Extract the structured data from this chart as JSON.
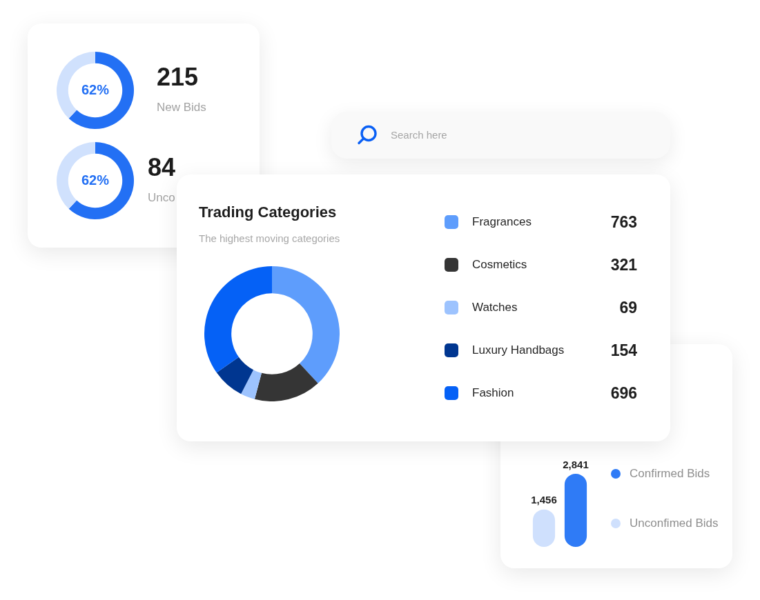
{
  "chart_data": [
    {
      "type": "donut",
      "categories": [
        null,
        null
      ],
      "values": [
        62,
        38
      ],
      "colors": [
        "#2370f4",
        "#d0e1fd"
      ],
      "value_labels": [
        "62%",
        null
      ],
      "annotations": [
        "215",
        "New Bids"
      ]
    },
    {
      "type": "donut",
      "categories": [
        null,
        null
      ],
      "values": [
        62,
        38
      ],
      "colors": [
        "#2370f4",
        "#d0e1fd"
      ],
      "value_labels": [
        "62%",
        null
      ],
      "annotations": [
        "84",
        "Unco"
      ]
    },
    {
      "type": "other",
      "annotations": [
        "Search here"
      ]
    },
    {
      "type": "donut",
      "title": "Trading Categories",
      "subtitle": "The highest moving categories",
      "categories": [
        "Fragrances",
        "Cosmetics",
        "Watches",
        "Luxury Handbags",
        "Fashion"
      ],
      "values": [
        763,
        321,
        69,
        154,
        696
      ],
      "colors": [
        "#5e9dfc",
        "#353535",
        "#9dc3fe",
        "#003690",
        "#0561f6"
      ],
      "data_labels": true,
      "legend": "right"
    },
    {
      "type": "bar",
      "categories": [
        null,
        null
      ],
      "series": [
        {
          "name": "Confirmed Bids",
          "color": "#2f7bf6",
          "values": [
            null,
            2841
          ],
          "value_labels": [
            null,
            "2,841"
          ]
        },
        {
          "name": "Unconfimed Bids",
          "color": "#cfe0fd",
          "values": [
            1456,
            null
          ],
          "value_labels": [
            "1,456",
            null
          ]
        }
      ],
      "stacked": true,
      "legend": "right"
    }
  ]
}
